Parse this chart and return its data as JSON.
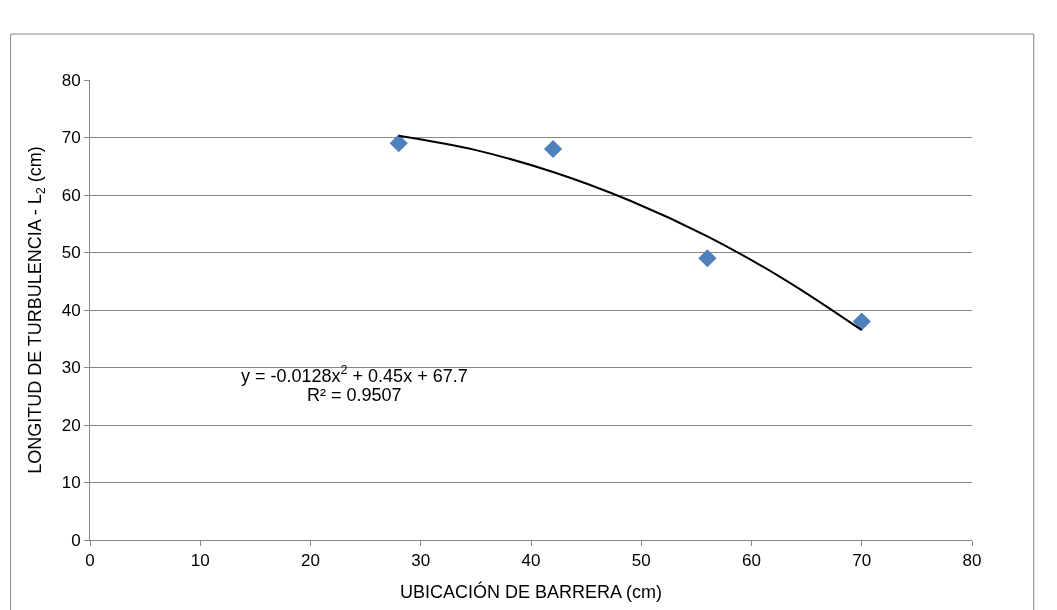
{
  "chart_data": {
    "type": "scatter",
    "xlabel": "UBICACIÓN DE BARRERA (cm)",
    "ylabel": "LONGITUD DE TURBULENCIA - L$_{2}$ (cm)",
    "xlim": [
      0,
      80
    ],
    "xticks": [
      0,
      10,
      20,
      30,
      40,
      50,
      60,
      70,
      80
    ],
    "ylim": [
      0,
      80
    ],
    "yticks": [
      0,
      10,
      20,
      30,
      40,
      50,
      60,
      70,
      80
    ],
    "grid": "y",
    "series": [
      {
        "color": "#4f81bd",
        "marker": "diamond",
        "x": [
          28,
          42,
          56,
          70
        ],
        "values": [
          69,
          68,
          49,
          38
        ]
      },
      {
        "type": "line",
        "color": "#000000",
        "marker": "none",
        "line_style": "solid",
        "x": [
          28,
          35,
          42,
          49,
          56,
          63,
          70
        ],
        "values": [
          70.3,
          67.8,
          64,
          59,
          52.8,
          45.3,
          36.5
        ]
      }
    ],
    "annotations": [
      "y = -0.0128x$^{2}$ + 0.45x + 67.7",
      "R² = 0.9507"
    ]
  }
}
